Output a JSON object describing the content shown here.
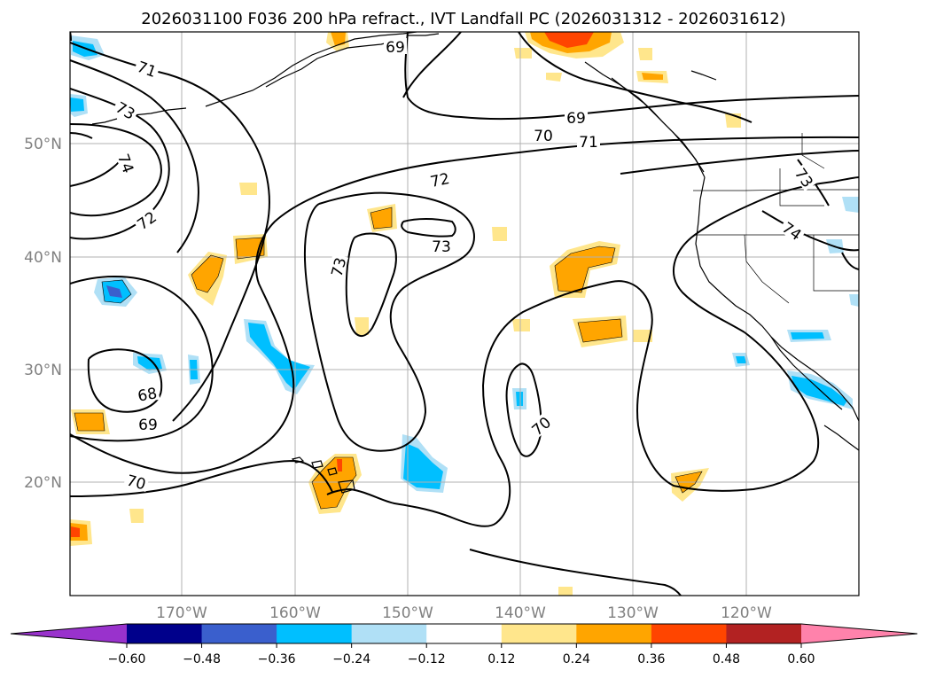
{
  "title": "2026031100 F036 200 hPa refract., IVT Landfall PC (2026031312 - 2026031612)",
  "lat_labels": [
    "50°N",
    "40°N",
    "30°N",
    "20°N"
  ],
  "lon_labels": [
    "170°W",
    "160°W",
    "150°W",
    "140°W",
    "130°W",
    "120°W"
  ],
  "contour_labels": [
    "69",
    "71",
    "73",
    "74",
    "72",
    "69",
    "70",
    "71",
    "72",
    "73",
    "73",
    "73",
    "74",
    "68",
    "69",
    "70",
    "70"
  ],
  "colorbar": {
    "ticks": [
      "−0.60",
      "−0.48",
      "−0.36",
      "−0.24",
      "−0.12",
      "0.12",
      "0.24",
      "0.36",
      "0.48",
      "0.60"
    ],
    "colors": [
      "#9932cc",
      "#00008b",
      "#3a5fcd",
      "#00bfff",
      "#b0e0f6",
      "#ffffff",
      "#ffe68c",
      "#ffa500",
      "#ff4500",
      "#b22222",
      "#ff82ab"
    ]
  },
  "chart_data": {
    "type": "map",
    "title": "2026031100 F036 200 hPa refract., IVT Landfall PC (2026031312 - 2026031612)",
    "lon_range": [
      "180°W",
      "110°W"
    ],
    "lat_range": [
      "10°N",
      "60°N"
    ],
    "grid": true,
    "contour_levels": [
      68,
      69,
      70,
      71,
      72,
      73,
      74
    ],
    "colorbar_bounds": [
      -0.6,
      -0.48,
      -0.36,
      -0.24,
      -0.12,
      0.12,
      0.24,
      0.36,
      0.48,
      0.6
    ],
    "colorbar_placement": "bottom"
  }
}
